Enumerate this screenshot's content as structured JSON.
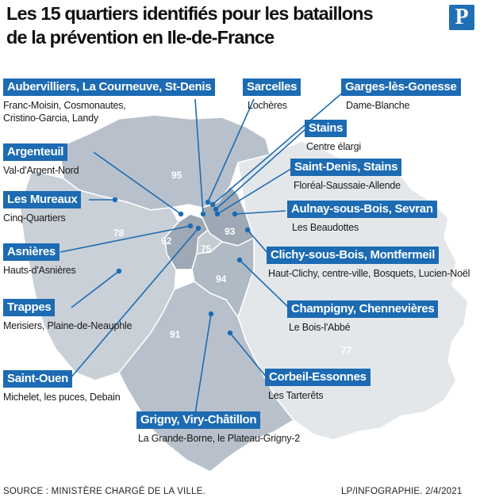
{
  "title_line1": "Les 15 quartiers identifiés pour les bataillons",
  "title_line2": "de la prévention en Ile-de-France",
  "logo_letter": "P",
  "departments": [
    {
      "id": "95",
      "label": "95"
    },
    {
      "id": "78",
      "label": "78"
    },
    {
      "id": "92",
      "label": "92"
    },
    {
      "id": "75",
      "label": "75"
    },
    {
      "id": "93",
      "label": "93"
    },
    {
      "id": "94",
      "label": "94"
    },
    {
      "id": "91",
      "label": "91"
    },
    {
      "id": "77",
      "label": "77"
    }
  ],
  "places": [
    {
      "name": "Aubervilliers, La Courneuve, St-Denis",
      "sub": "Franc-Moisin, Cosmonautes,",
      "sub2": "Cristino-Garcia, Landy"
    },
    {
      "name": "Sarcelles",
      "sub": "Lochères"
    },
    {
      "name": "Garges-lès-Gonesse",
      "sub": "Dame-Blanche"
    },
    {
      "name": "Stains",
      "sub": "Centre élargi"
    },
    {
      "name": "Argenteuil",
      "sub": "Val-d'Argent-Nord"
    },
    {
      "name": "Saint-Denis, Stains",
      "sub": "Floréal-Saussaie-Allende"
    },
    {
      "name": "Les Mureaux",
      "sub": "Cinq-Quartiers"
    },
    {
      "name": "Aulnay-sous-Bois, Sevran",
      "sub": "Les Beaudottes"
    },
    {
      "name": "Asnières",
      "sub": "Hauts-d'Asnières"
    },
    {
      "name": "Clichy-sous-Bois, Montfermeil",
      "sub": "Haut-Clichy, centre-ville, Bosquets, Lucien-Noël"
    },
    {
      "name": "Trappes",
      "sub": "Merisiers, Plaine-de-Neauphle"
    },
    {
      "name": "Champigny, Chennevières",
      "sub": "Le Bois-l'Abbé"
    },
    {
      "name": "Saint-Ouen",
      "sub": "Michelet, les puces, Debain"
    },
    {
      "name": "Corbeil-Essonnes",
      "sub": "Les Tarterêts"
    },
    {
      "name": "Grigny, Viry-Châtillon",
      "sub": "La Grande-Borne, le Plateau-Grigny-2"
    }
  ],
  "footer_source": "SOURCE : MINISTÈRE CHARGÉ DE LA VILLE.",
  "footer_credit": "LP/INFOGRAPHIE.  2/4/2021"
}
